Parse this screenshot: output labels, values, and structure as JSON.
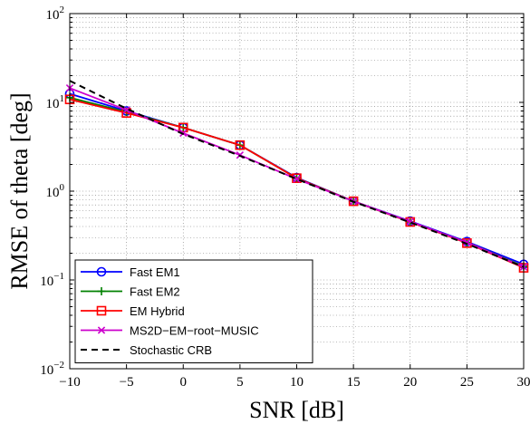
{
  "chart_data": {
    "type": "line",
    "title": "",
    "xlabel": "SNR [dB]",
    "ylabel": "RMSE of theta [deg]",
    "xlim": [
      -10,
      30
    ],
    "ylim": [
      0.01,
      100
    ],
    "yscale": "log",
    "grid": true,
    "legend_position": "bottom-left",
    "x_ticks": [
      -10,
      -5,
      0,
      5,
      10,
      15,
      20,
      25,
      30
    ],
    "x_tick_labels": [
      "−10",
      "−5",
      "0",
      "5",
      "10",
      "15",
      "20",
      "25",
      "30"
    ],
    "y_ticks": [
      0.01,
      0.1,
      1,
      10,
      100
    ],
    "y_tick_labels": [
      {
        "base": "10",
        "exp": "−2"
      },
      {
        "base": "10",
        "exp": "−1"
      },
      {
        "base": "10",
        "exp": "0"
      },
      {
        "base": "10",
        "exp": "1"
      },
      {
        "base": "10",
        "exp": "2"
      }
    ],
    "x": [
      -10,
      -5,
      0,
      5,
      10,
      15,
      20,
      25,
      30
    ],
    "series": [
      {
        "name": "Fast EM1",
        "color": "#0000ff",
        "marker": "circle",
        "dash": "solid",
        "values": [
          12.5,
          8.0,
          5.2,
          3.3,
          1.42,
          0.77,
          0.46,
          0.27,
          0.15
        ]
      },
      {
        "name": "Fast EM2",
        "color": "#008000",
        "marker": "plus",
        "dash": "solid",
        "values": [
          11.3,
          7.8,
          5.2,
          3.3,
          1.4,
          0.77,
          0.45,
          0.265,
          0.142
        ]
      },
      {
        "name": "EM Hybrid",
        "color": "#ff0000",
        "marker": "square",
        "dash": "solid",
        "values": [
          10.8,
          7.6,
          5.2,
          3.3,
          1.4,
          0.77,
          0.45,
          0.26,
          0.137
        ]
      },
      {
        "name": "MS2D−EM−root−MUSIC",
        "color": "#cc00cc",
        "marker": "x",
        "dash": "solid",
        "values": [
          14.5,
          8.2,
          4.5,
          2.55,
          1.37,
          0.77,
          0.455,
          0.265,
          0.14
        ]
      },
      {
        "name": "Stochastic CRB",
        "color": "#000000",
        "marker": "none",
        "dash": "dashed",
        "values": [
          17.5,
          8.5,
          4.4,
          2.5,
          1.37,
          0.76,
          0.445,
          0.255,
          0.14
        ]
      }
    ]
  }
}
